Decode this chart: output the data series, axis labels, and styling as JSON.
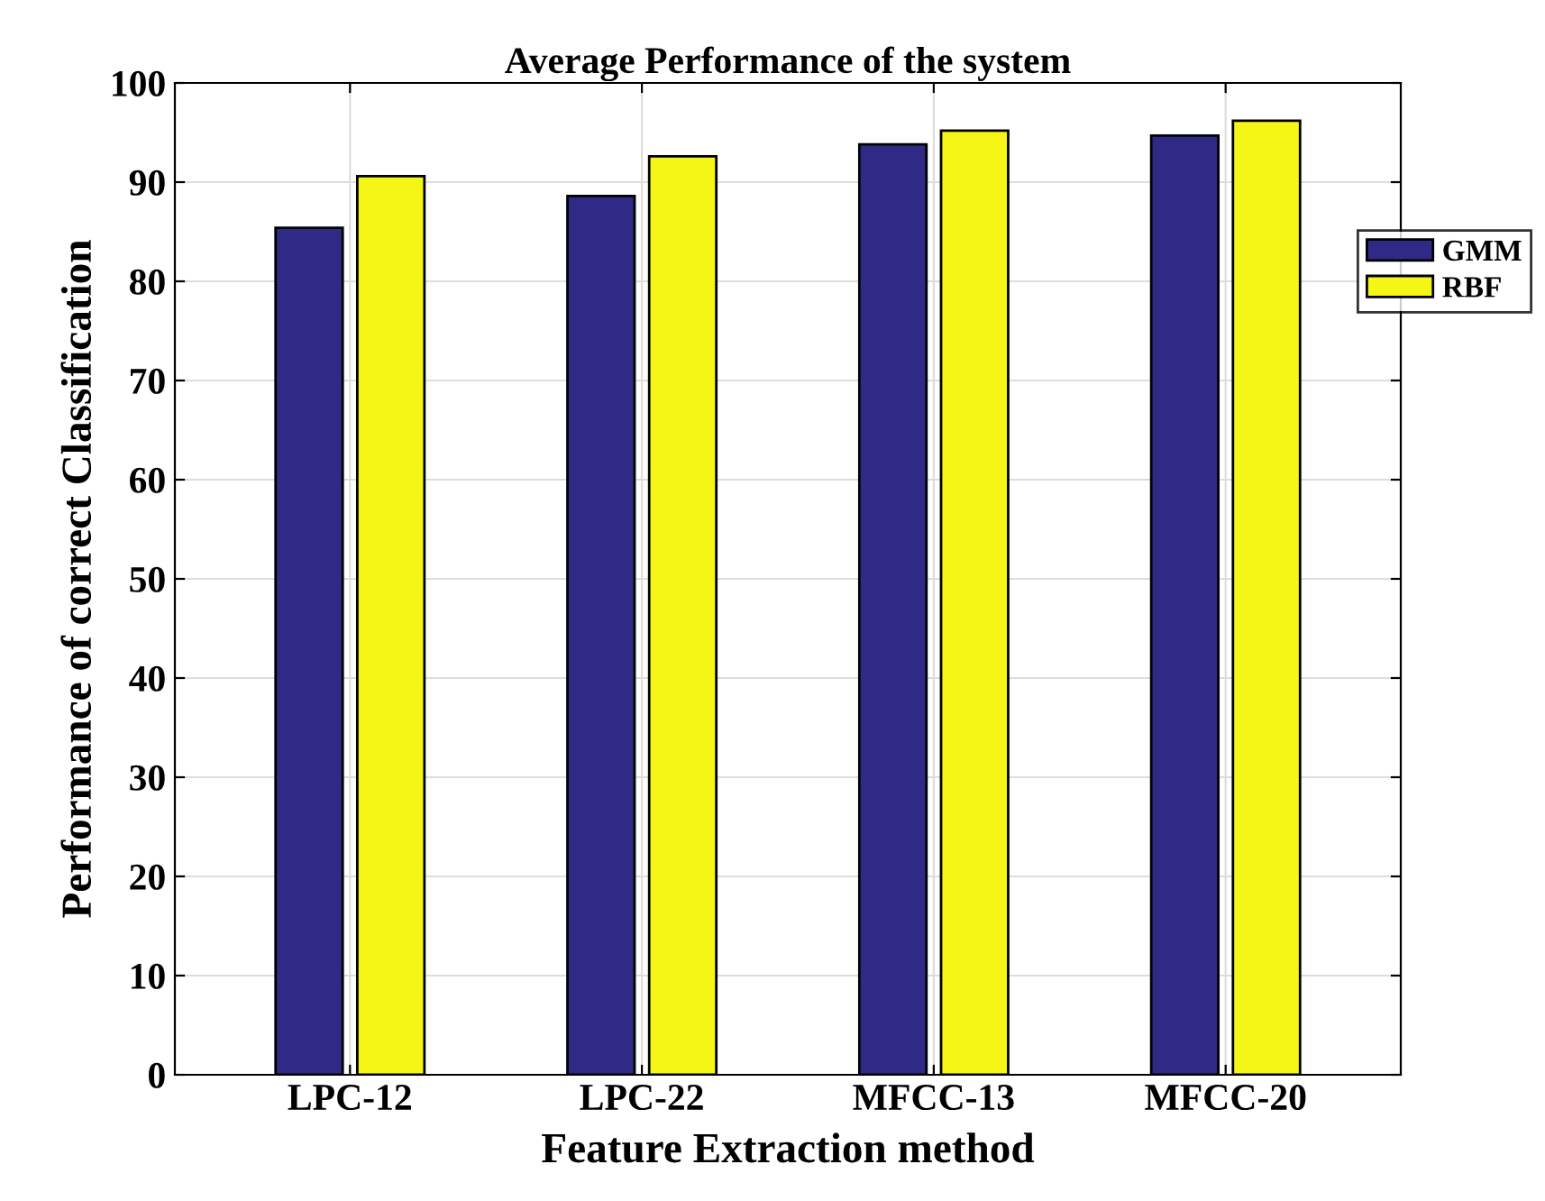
{
  "chart_data": {
    "type": "bar",
    "title": "Average Performance of the system",
    "xlabel": "Feature Extraction method",
    "ylabel": "Performance of correct Classification",
    "categories": [
      "LPC-12",
      "LPC-22",
      "MFCC-13",
      "MFCC-20"
    ],
    "series": [
      {
        "name": "GMM",
        "color": "#2e2a85",
        "values": [
          85.4,
          88.6,
          93.8,
          94.7
        ]
      },
      {
        "name": "RBF",
        "color": "#f5f516",
        "values": [
          90.6,
          92.6,
          95.2,
          96.2
        ]
      }
    ],
    "ylim": [
      0,
      100
    ],
    "yticks": [
      0,
      10,
      20,
      30,
      40,
      50,
      60,
      70,
      80,
      90,
      100
    ],
    "grid": true,
    "legend": "right"
  }
}
